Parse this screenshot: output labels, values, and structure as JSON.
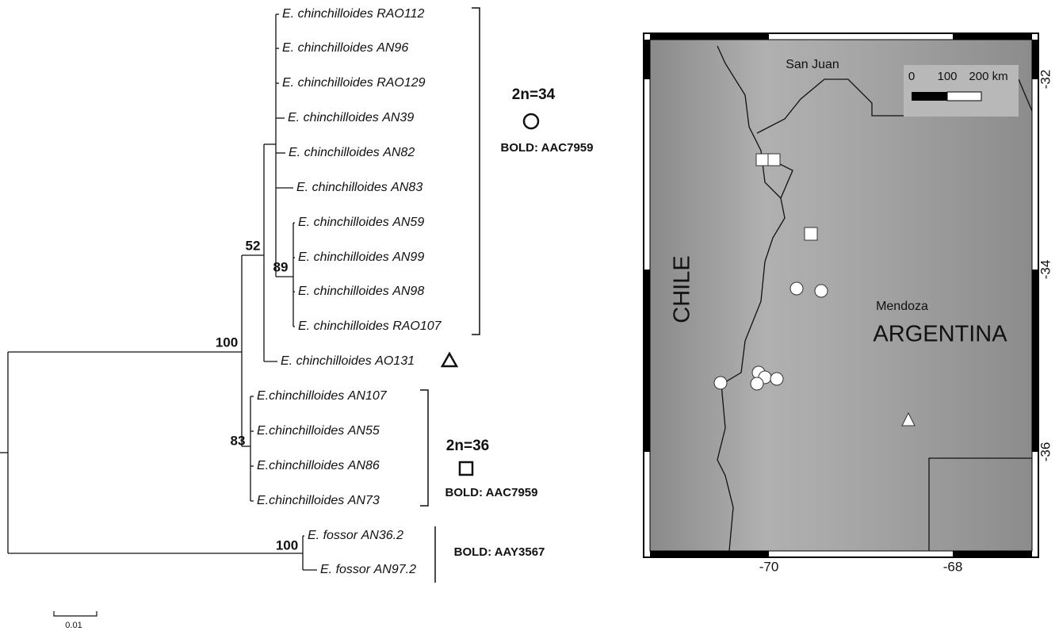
{
  "tree": {
    "tips": [
      {
        "species": "E. chinchilloides",
        "code": "RAO112"
      },
      {
        "species": "E. chinchilloides",
        "code": "AN96"
      },
      {
        "species": "E. chinchilloides",
        "code": "RAO129"
      },
      {
        "species": "E. chinchilloides",
        "code": "AN39"
      },
      {
        "species": "E. chinchilloides",
        "code": "AN82"
      },
      {
        "species": "E. chinchilloides",
        "code": "AN83"
      },
      {
        "species": "E. chinchilloides",
        "code": "AN59"
      },
      {
        "species": "E. chinchilloides",
        "code": "AN99"
      },
      {
        "species": "E. chinchilloides",
        "code": "AN98"
      },
      {
        "species": "E. chinchilloides",
        "code": "RAO107"
      },
      {
        "species": "E. chinchilloides",
        "code": "AO131"
      },
      {
        "species": "E.chinchilloides",
        "code": "AN107"
      },
      {
        "species": "E.chinchilloides",
        "code": "AN55"
      },
      {
        "species": "E.chinchilloides",
        "code": "AN86"
      },
      {
        "species": "E.chinchilloides",
        "code": "AN73"
      },
      {
        "species": "E. fossor",
        "code": "AN36.2"
      },
      {
        "species": "E. fossor",
        "code": "AN97.2"
      }
    ],
    "support": [
      "100",
      "52",
      "89",
      "83",
      "100"
    ],
    "groups": [
      {
        "karyotype": "2n=34",
        "bold": "BOLD: AAC7959"
      },
      {
        "karyotype": "2n=36",
        "bold": "BOLD: AAC7959"
      },
      {
        "bold": "BOLD: AAY3567"
      }
    ],
    "scale_bar": "0.01"
  },
  "map": {
    "places": [
      "San Juan",
      "Mendoza"
    ],
    "countries": [
      "ARGENTINA",
      "CHILE"
    ],
    "scale_labels": [
      "0",
      "100",
      "200 km"
    ],
    "x_ticks": [
      "-70",
      "-68"
    ],
    "y_ticks": [
      "-32",
      "-34",
      "-36"
    ]
  }
}
